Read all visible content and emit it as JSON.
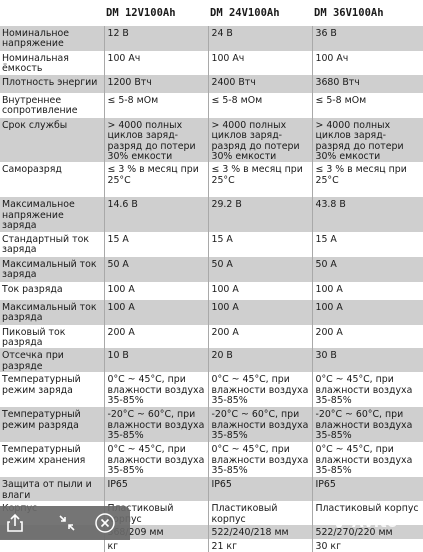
{
  "header": {
    "col1": "DM 12V100Ah",
    "col2": "DM 24V100Ah",
    "col3": "DM 36V100Ah"
  },
  "rows": [
    {
      "label": "Номинальное напряжение",
      "v1": "12 В",
      "v2": "24 В",
      "v3": "36 В"
    },
    {
      "label": "Номинальная ёмкость",
      "v1": "100 Ач",
      "v2": "100 Ач",
      "v3": "100 Ач"
    },
    {
      "label": "Плотность энергии",
      "v1": "1200 Втч",
      "v2": "2400 Втч",
      "v3": "3680 Втч"
    },
    {
      "label": "Внутреннее сопротивление",
      "v1": "≤ 5-8 мОм",
      "v2": "≤ 5-8 мОм",
      "v3": "≤ 5-8 мОм"
    },
    {
      "label": "Срок службы",
      "v1": "> 4000 полных циклов заряд-разряд до потери 30% емкости",
      "v2": "> 4000 полных циклов заряд-разряд до потери 30% емкости",
      "v3": "> 4000 полных циклов заряд-разряд до потери 30% емкости"
    },
    {
      "label": "Саморазряд",
      "v1": "≤ 3 % в месяц при 25°С",
      "v2": "≤ 3 % в месяц при 25°С",
      "v3": "≤ 3 % в месяц при 25°С"
    },
    {
      "label": "Максимальное напряжение заряда",
      "v1": "14.6 В",
      "v2": "29.2 В",
      "v3": "43.8 В"
    },
    {
      "label": "Стандартный ток заряда",
      "v1": "15 А",
      "v2": "15 А",
      "v3": "15 А"
    },
    {
      "label": "Максимальный ток заряда",
      "v1": "50 А",
      "v2": "50 А",
      "v3": "50 А"
    },
    {
      "label": "Ток разряда",
      "v1": "100 А",
      "v2": "100 А",
      "v3": "100 А"
    },
    {
      "label": "Максимальный ток разряда",
      "v1": "100 А",
      "v2": "100 А",
      "v3": "100 А"
    },
    {
      "label": "Пиковый ток разряда",
      "v1": "200 А",
      "v2": "200 А",
      "v3": "200 А"
    },
    {
      "label": "Отсечка при разряде",
      "v1": "10 В",
      "v2": "20 В",
      "v3": "30 В"
    },
    {
      "label": "Температурный режим заряда",
      "v1": "0°C ~ 45°C, при влажности воздуха 35-85%",
      "v2": "0°C ~ 45°C, при влажности воздуха 35-85%",
      "v3": "0°C ~ 45°C, при влажности воздуха 35-85%"
    },
    {
      "label": "Температурный режим разряда",
      "v1": "-20°C ~ 60°C, при влажности воздуха 35-85%",
      "v2": "-20°C ~ 60°C, при влажности воздуха 35-85%",
      "v3": "-20°C ~ 60°C, при влажности воздуха 35-85%"
    },
    {
      "label": "Температурный режим хранения",
      "v1": "0°C ~ 45°C, при влажности воздуха 35-85%",
      "v2": "0°C ~ 45°C, при влажности воздуха 35-85%",
      "v3": "0°C ~ 45°C, при влажности воздуха 35-85%"
    },
    {
      "label": "Защита от пыли и влаги",
      "v1": "IP65",
      "v2": "IP65",
      "v3": "IP65"
    },
    {
      "label": "Корпус",
      "v1": "Пластиковый корпус",
      "v2": "Пластиковый корпус",
      "v3": "Пластиковый корпус"
    },
    {
      "label": "",
      "v1": "368/209 мм",
      "v2": "522/240/218 мм",
      "v3": "522/270/220 мм"
    },
    {
      "label": "",
      "v1": "кг",
      "v2": "21 кг",
      "v3": "30 кг"
    }
  ],
  "toolbar": {
    "share": "share-icon",
    "collapse": "collapse-arrows-icon",
    "close": "close-icon"
  },
  "watermark": "Avito",
  "colors": {
    "stripe": "#cfcfcf",
    "toolbar": "#696969"
  }
}
